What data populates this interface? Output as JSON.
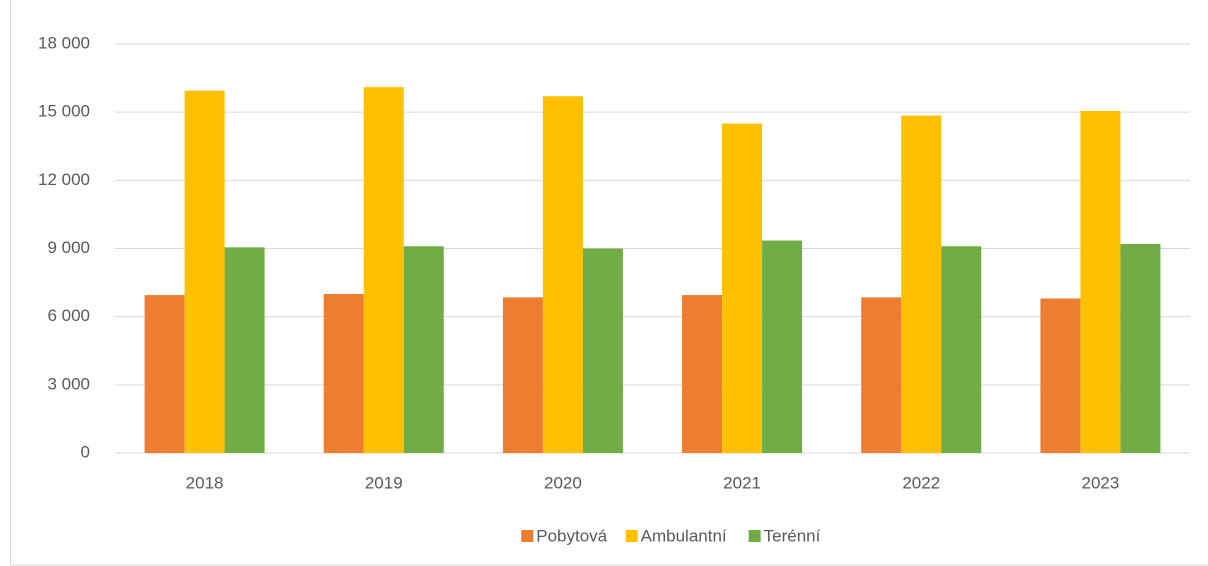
{
  "chart_data": {
    "type": "bar",
    "categories": [
      "2018",
      "2019",
      "2020",
      "2021",
      "2022",
      "2023"
    ],
    "series": [
      {
        "name": "Pobytová",
        "color": "#ed7d31",
        "values": [
          6950,
          7000,
          6850,
          6950,
          6850,
          6800
        ]
      },
      {
        "name": "Ambulantní",
        "color": "#ffc000",
        "values": [
          15950,
          16100,
          15700,
          14500,
          14850,
          15050
        ]
      },
      {
        "name": "Terénní",
        "color": "#70ad47",
        "values": [
          9050,
          9100,
          9000,
          9350,
          9100,
          9200
        ]
      }
    ],
    "ylim": [
      0,
      18000
    ],
    "yticks": [
      0,
      {
        "value": 3000,
        "label": "3 000"
      },
      {
        "value": 6000,
        "label": "6 000"
      },
      {
        "value": 9000,
        "label": "9 000"
      },
      {
        "value": 12000,
        "label": "12 000"
      },
      {
        "value": 15000,
        "label": "15 000"
      },
      {
        "value": 18000,
        "label": "18 000"
      }
    ],
    "grid": true,
    "legend": "bottom"
  }
}
